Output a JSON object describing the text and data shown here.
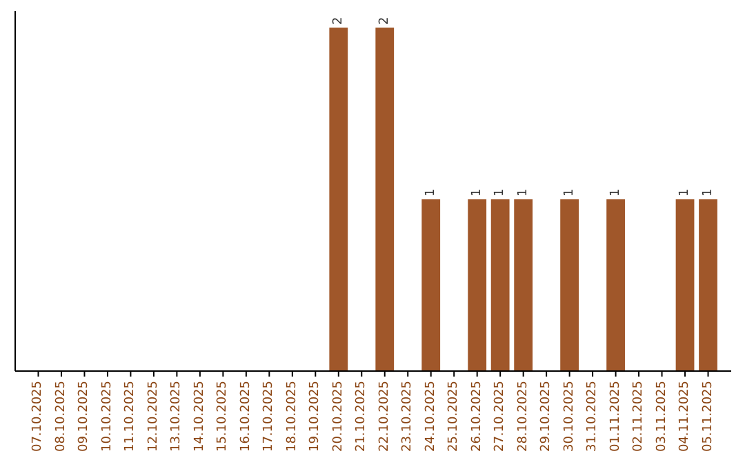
{
  "chart_data": {
    "type": "bar",
    "categories": [
      "07.10.2025",
      "08.10.2025",
      "09.10.2025",
      "10.10.2025",
      "11.10.2025",
      "12.10.2025",
      "13.10.2025",
      "14.10.2025",
      "15.10.2025",
      "16.10.2025",
      "17.10.2025",
      "18.10.2025",
      "19.10.2025",
      "20.10.2025",
      "21.10.2025",
      "22.10.2025",
      "23.10.2025",
      "24.10.2025",
      "25.10.2025",
      "26.10.2025",
      "27.10.2025",
      "28.10.2025",
      "29.10.2025",
      "30.10.2025",
      "31.10.2025",
      "01.11.2025",
      "02.11.2025",
      "03.11.2025",
      "04.11.2025",
      "05.11.2025"
    ],
    "values": [
      null,
      null,
      null,
      null,
      null,
      null,
      null,
      null,
      null,
      null,
      null,
      null,
      null,
      2,
      null,
      2,
      null,
      1,
      null,
      1,
      1,
      1,
      null,
      1,
      null,
      1,
      null,
      null,
      1,
      1
    ],
    "value_labels": [
      null,
      null,
      null,
      null,
      null,
      null,
      null,
      null,
      null,
      null,
      null,
      null,
      null,
      "2",
      null,
      "2",
      null,
      "1",
      null,
      "1",
      "1",
      "1",
      null,
      "1",
      null,
      "1",
      null,
      null,
      "1",
      "1"
    ],
    "color": "#a0572a"
  }
}
